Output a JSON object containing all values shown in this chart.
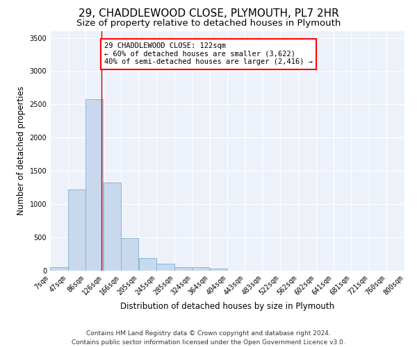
{
  "title": "29, CHADDLEWOOD CLOSE, PLYMOUTH, PL7 2HR",
  "subtitle": "Size of property relative to detached houses in Plymouth",
  "xlabel": "Distribution of detached houses by size in Plymouth",
  "ylabel": "Number of detached properties",
  "bar_color": "#c8d9ee",
  "bar_edge_color": "#7aadd4",
  "background_color": "#edf2fa",
  "grid_color": "#ffffff",
  "annotation_text": "29 CHADDLEWOOD CLOSE: 122sqm\n← 60% of detached houses are smaller (3,622)\n40% of semi-detached houses are larger (2,416) →",
  "vline_x": 122,
  "vline_color": "#cc0000",
  "footer_line1": "Contains HM Land Registry data © Crown copyright and database right 2024.",
  "footer_line2": "Contains public sector information licensed under the Open Government Licence v3.0.",
  "bin_edges": [
    7,
    47,
    86,
    126,
    166,
    205,
    245,
    285,
    324,
    364,
    404,
    443,
    483,
    522,
    562,
    602,
    641,
    681,
    721,
    760,
    800
  ],
  "bar_heights": [
    50,
    1220,
    2580,
    1330,
    490,
    190,
    105,
    50,
    50,
    35,
    0,
    0,
    0,
    0,
    0,
    0,
    0,
    0,
    0,
    0
  ],
  "ylim": [
    0,
    3600
  ],
  "yticks": [
    0,
    500,
    1000,
    1500,
    2000,
    2500,
    3000,
    3500
  ],
  "title_fontsize": 11,
  "subtitle_fontsize": 9.5,
  "axis_label_fontsize": 8.5,
  "tick_fontsize": 7,
  "annotation_fontsize": 7.5,
  "footer_fontsize": 6.5
}
